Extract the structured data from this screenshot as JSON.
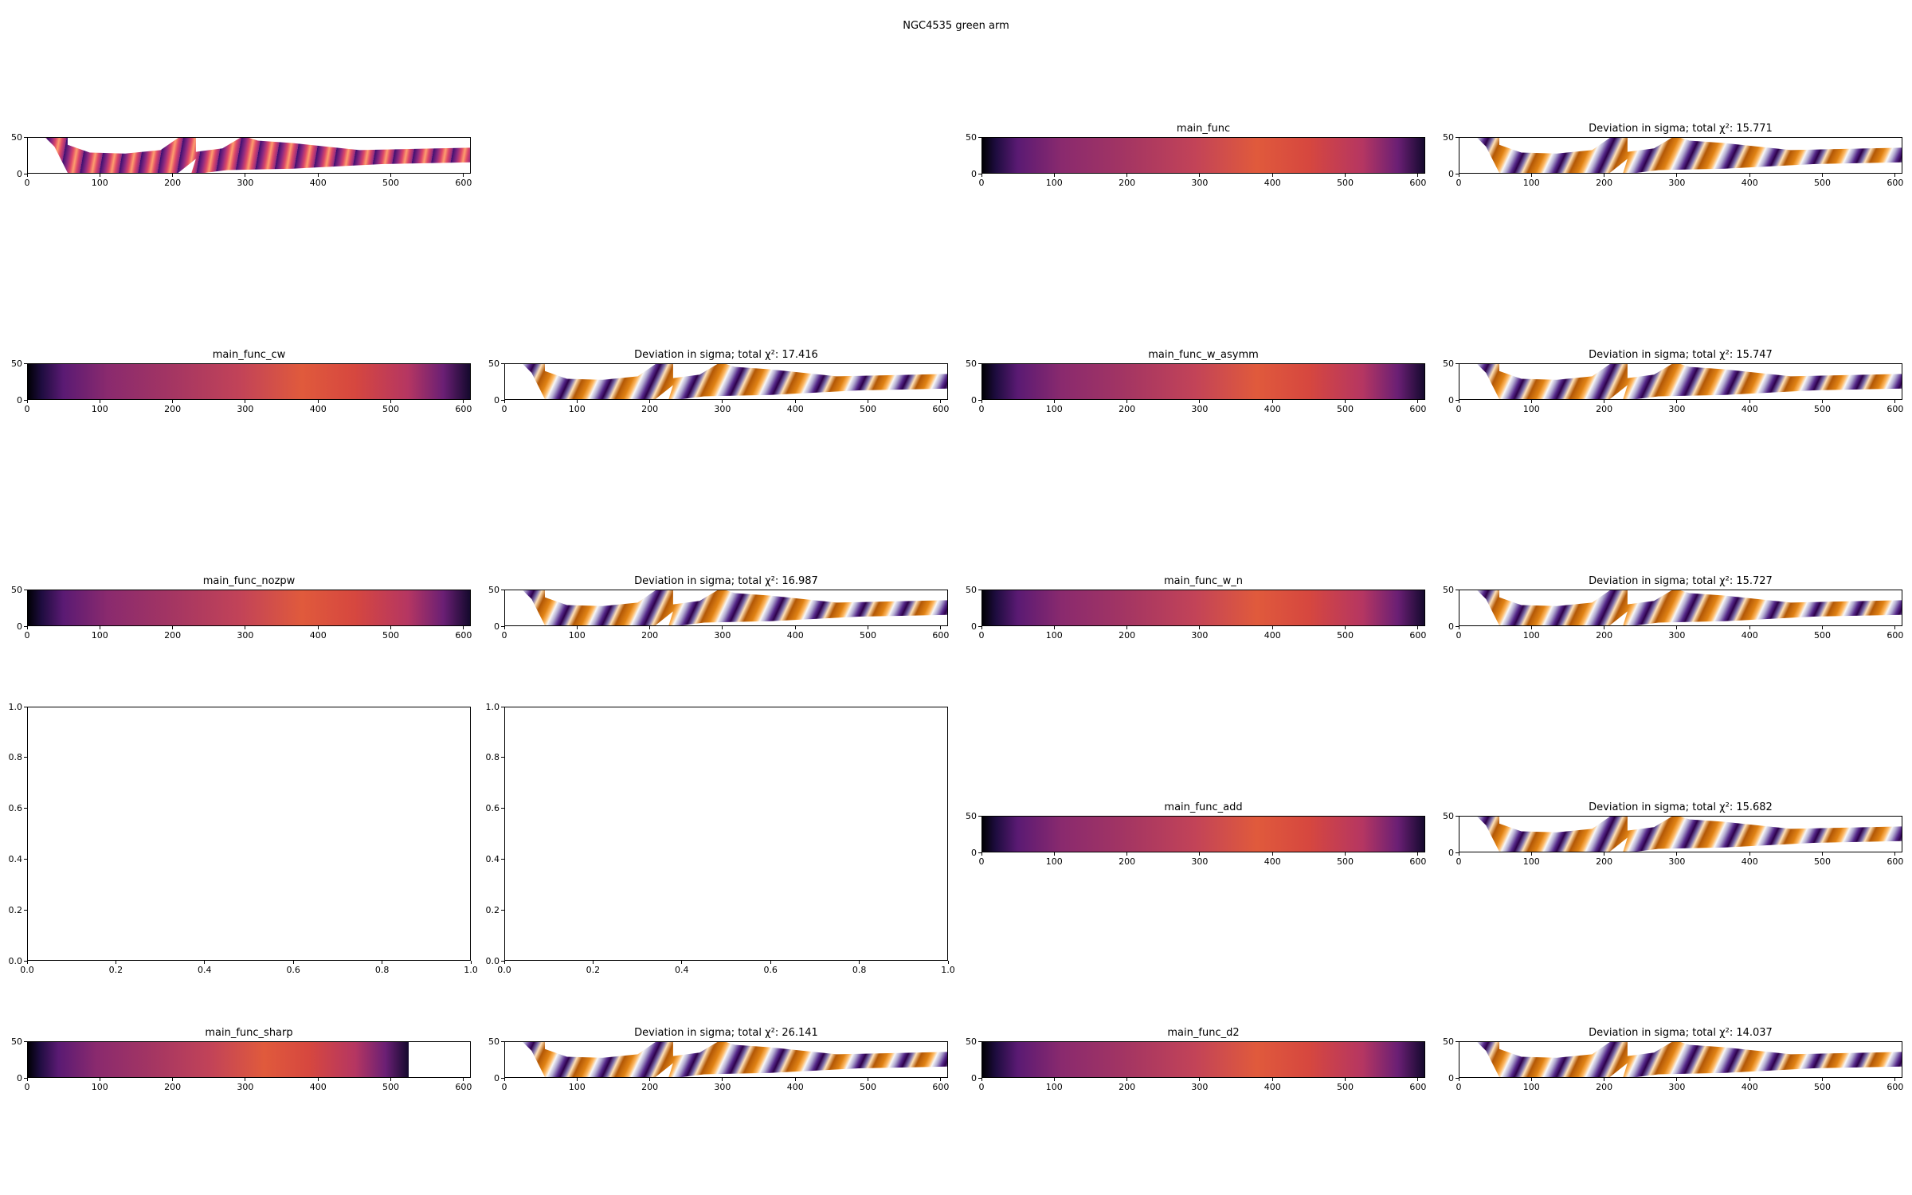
{
  "suptitle": "NGC4535 green arm",
  "colors": {
    "model_gradient": "linear-gradient(to right, #000004 0%, #1d0c3e 3%, #5a1a73 8%, #8a2a6e 18%, #a33563 32%, #c24358 48%, #e05a3c 62%, #d6473f 74%, #b53662 86%, #6a1f74 94%, #14092d 100%)",
    "residual_gradient": "repeating-linear-gradient(115deg, #b35806 0px, #e08214 9px, #fdb863 14px, #f7f7f7 18px, #b2abd2 23px, #542788 29px, #2d004b 33px, #8073ac 38px, #fee0b6 42px, #b35806 48px)",
    "data_gradient": "repeating-linear-gradient(100deg, #3b0f70 0px, #8c2981 6px, #de4968 11px, #fe9f6d 15px, #de4968 19px, #8c2981 24px)"
  },
  "chart_data": [
    {
      "id": "r0c0",
      "type": "heatmap",
      "kind": "data",
      "title": "",
      "xlim": [
        0,
        610
      ],
      "ylim": [
        0,
        50
      ],
      "xticks": [
        "0",
        "100",
        "200",
        "300",
        "400",
        "500",
        "600"
      ],
      "yticks": [
        "0",
        "50"
      ],
      "extent_x": 610
    },
    {
      "id": "r0c2",
      "type": "heatmap",
      "kind": "model",
      "title": "main_func",
      "xlim": [
        0,
        610
      ],
      "ylim": [
        0,
        50
      ],
      "xticks": [
        "0",
        "100",
        "200",
        "300",
        "400",
        "500",
        "600"
      ],
      "yticks": [
        "0",
        "50"
      ],
      "extent_x": 610
    },
    {
      "id": "r0c3",
      "type": "heatmap",
      "kind": "residual",
      "title": "Deviation in sigma; total χ²: 15.771",
      "chi2": 15.771,
      "xlim": [
        0,
        610
      ],
      "ylim": [
        0,
        50
      ],
      "xticks": [
        "0",
        "100",
        "200",
        "300",
        "400",
        "500",
        "600"
      ],
      "yticks": [
        "0",
        "50"
      ],
      "extent_x": 610
    },
    {
      "id": "r1c0",
      "type": "heatmap",
      "kind": "model",
      "title": "main_func_cw",
      "xlim": [
        0,
        610
      ],
      "ylim": [
        0,
        50
      ],
      "xticks": [
        "0",
        "100",
        "200",
        "300",
        "400",
        "500",
        "600"
      ],
      "yticks": [
        "0",
        "50"
      ],
      "extent_x": 610
    },
    {
      "id": "r1c1",
      "type": "heatmap",
      "kind": "residual",
      "title": "Deviation in sigma; total χ²: 17.416",
      "chi2": 17.416,
      "xlim": [
        0,
        610
      ],
      "ylim": [
        0,
        50
      ],
      "xticks": [
        "0",
        "100",
        "200",
        "300",
        "400",
        "500",
        "600"
      ],
      "yticks": [
        "0",
        "50"
      ],
      "extent_x": 610
    },
    {
      "id": "r1c2",
      "type": "heatmap",
      "kind": "model",
      "title": "main_func_w_asymm",
      "xlim": [
        0,
        610
      ],
      "ylim": [
        0,
        50
      ],
      "xticks": [
        "0",
        "100",
        "200",
        "300",
        "400",
        "500",
        "600"
      ],
      "yticks": [
        "0",
        "50"
      ],
      "extent_x": 610
    },
    {
      "id": "r1c3",
      "type": "heatmap",
      "kind": "residual",
      "title": "Deviation in sigma; total χ²: 15.747",
      "chi2": 15.747,
      "xlim": [
        0,
        610
      ],
      "ylim": [
        0,
        50
      ],
      "xticks": [
        "0",
        "100",
        "200",
        "300",
        "400",
        "500",
        "600"
      ],
      "yticks": [
        "0",
        "50"
      ],
      "extent_x": 610
    },
    {
      "id": "r2c0",
      "type": "heatmap",
      "kind": "model",
      "title": "main_func_nozpw",
      "xlim": [
        0,
        610
      ],
      "ylim": [
        0,
        50
      ],
      "xticks": [
        "0",
        "100",
        "200",
        "300",
        "400",
        "500",
        "600"
      ],
      "yticks": [
        "0",
        "50"
      ],
      "extent_x": 610
    },
    {
      "id": "r2c1",
      "type": "heatmap",
      "kind": "residual",
      "title": "Deviation in sigma; total χ²: 16.987",
      "chi2": 16.987,
      "xlim": [
        0,
        610
      ],
      "ylim": [
        0,
        50
      ],
      "xticks": [
        "0",
        "100",
        "200",
        "300",
        "400",
        "500",
        "600"
      ],
      "yticks": [
        "0",
        "50"
      ],
      "extent_x": 610
    },
    {
      "id": "r2c2",
      "type": "heatmap",
      "kind": "model",
      "title": "main_func_w_n",
      "xlim": [
        0,
        610
      ],
      "ylim": [
        0,
        50
      ],
      "xticks": [
        "0",
        "100",
        "200",
        "300",
        "400",
        "500",
        "600"
      ],
      "yticks": [
        "0",
        "50"
      ],
      "extent_x": 610
    },
    {
      "id": "r2c3",
      "type": "heatmap",
      "kind": "residual",
      "title": "Deviation in sigma; total χ²: 15.727",
      "chi2": 15.727,
      "xlim": [
        0,
        610
      ],
      "ylim": [
        0,
        50
      ],
      "xticks": [
        "0",
        "100",
        "200",
        "300",
        "400",
        "500",
        "600"
      ],
      "yticks": [
        "0",
        "50"
      ],
      "extent_x": 610
    },
    {
      "id": "r3c0",
      "type": "empty",
      "kind": "empty",
      "title": "",
      "xlim": [
        0,
        1
      ],
      "ylim": [
        0,
        1
      ],
      "xticks": [
        "0.0",
        "0.2",
        "0.4",
        "0.6",
        "0.8",
        "1.0"
      ],
      "yticks": [
        "0.0",
        "0.2",
        "0.4",
        "0.6",
        "0.8",
        "1.0"
      ]
    },
    {
      "id": "r3c1",
      "type": "empty",
      "kind": "empty",
      "title": "",
      "xlim": [
        0,
        1
      ],
      "ylim": [
        0,
        1
      ],
      "xticks": [
        "0.0",
        "0.2",
        "0.4",
        "0.6",
        "0.8",
        "1.0"
      ],
      "yticks": [
        "0.0",
        "0.2",
        "0.4",
        "0.6",
        "0.8",
        "1.0"
      ]
    },
    {
      "id": "r3c2",
      "type": "heatmap",
      "kind": "model",
      "title": "main_func_add",
      "xlim": [
        0,
        610
      ],
      "ylim": [
        0,
        50
      ],
      "xticks": [
        "0",
        "100",
        "200",
        "300",
        "400",
        "500",
        "600"
      ],
      "yticks": [
        "0",
        "50"
      ],
      "extent_x": 610
    },
    {
      "id": "r3c3",
      "type": "heatmap",
      "kind": "residual",
      "title": "Deviation in sigma; total χ²: 15.682",
      "chi2": 15.682,
      "xlim": [
        0,
        610
      ],
      "ylim": [
        0,
        50
      ],
      "xticks": [
        "0",
        "100",
        "200",
        "300",
        "400",
        "500",
        "600"
      ],
      "yticks": [
        "0",
        "50"
      ],
      "extent_x": 610
    },
    {
      "id": "r4c0",
      "type": "heatmap",
      "kind": "model",
      "title": "main_func_sharp",
      "xlim": [
        0,
        610
      ],
      "ylim": [
        0,
        50
      ],
      "xticks": [
        "0",
        "100",
        "200",
        "300",
        "400",
        "500",
        "600"
      ],
      "yticks": [
        "0",
        "50"
      ],
      "extent_x": 525
    },
    {
      "id": "r4c1",
      "type": "heatmap",
      "kind": "residual",
      "title": "Deviation in sigma; total χ²: 26.141",
      "chi2": 26.141,
      "xlim": [
        0,
        610
      ],
      "ylim": [
        0,
        50
      ],
      "xticks": [
        "0",
        "100",
        "200",
        "300",
        "400",
        "500",
        "600"
      ],
      "yticks": [
        "0",
        "50"
      ],
      "extent_x": 610
    },
    {
      "id": "r4c2",
      "type": "heatmap",
      "kind": "model",
      "title": "main_func_d2",
      "xlim": [
        0,
        610
      ],
      "ylim": [
        0,
        50
      ],
      "xticks": [
        "0",
        "100",
        "200",
        "300",
        "400",
        "500",
        "600"
      ],
      "yticks": [
        "0",
        "50"
      ],
      "extent_x": 610
    },
    {
      "id": "r4c3",
      "type": "heatmap",
      "kind": "residual",
      "title": "Deviation in sigma; total χ²: 14.037",
      "chi2": 14.037,
      "xlim": [
        0,
        610
      ],
      "ylim": [
        0,
        50
      ],
      "xticks": [
        "0",
        "100",
        "200",
        "300",
        "400",
        "500",
        "600"
      ],
      "yticks": [
        "0",
        "50"
      ],
      "extent_x": 610
    }
  ]
}
